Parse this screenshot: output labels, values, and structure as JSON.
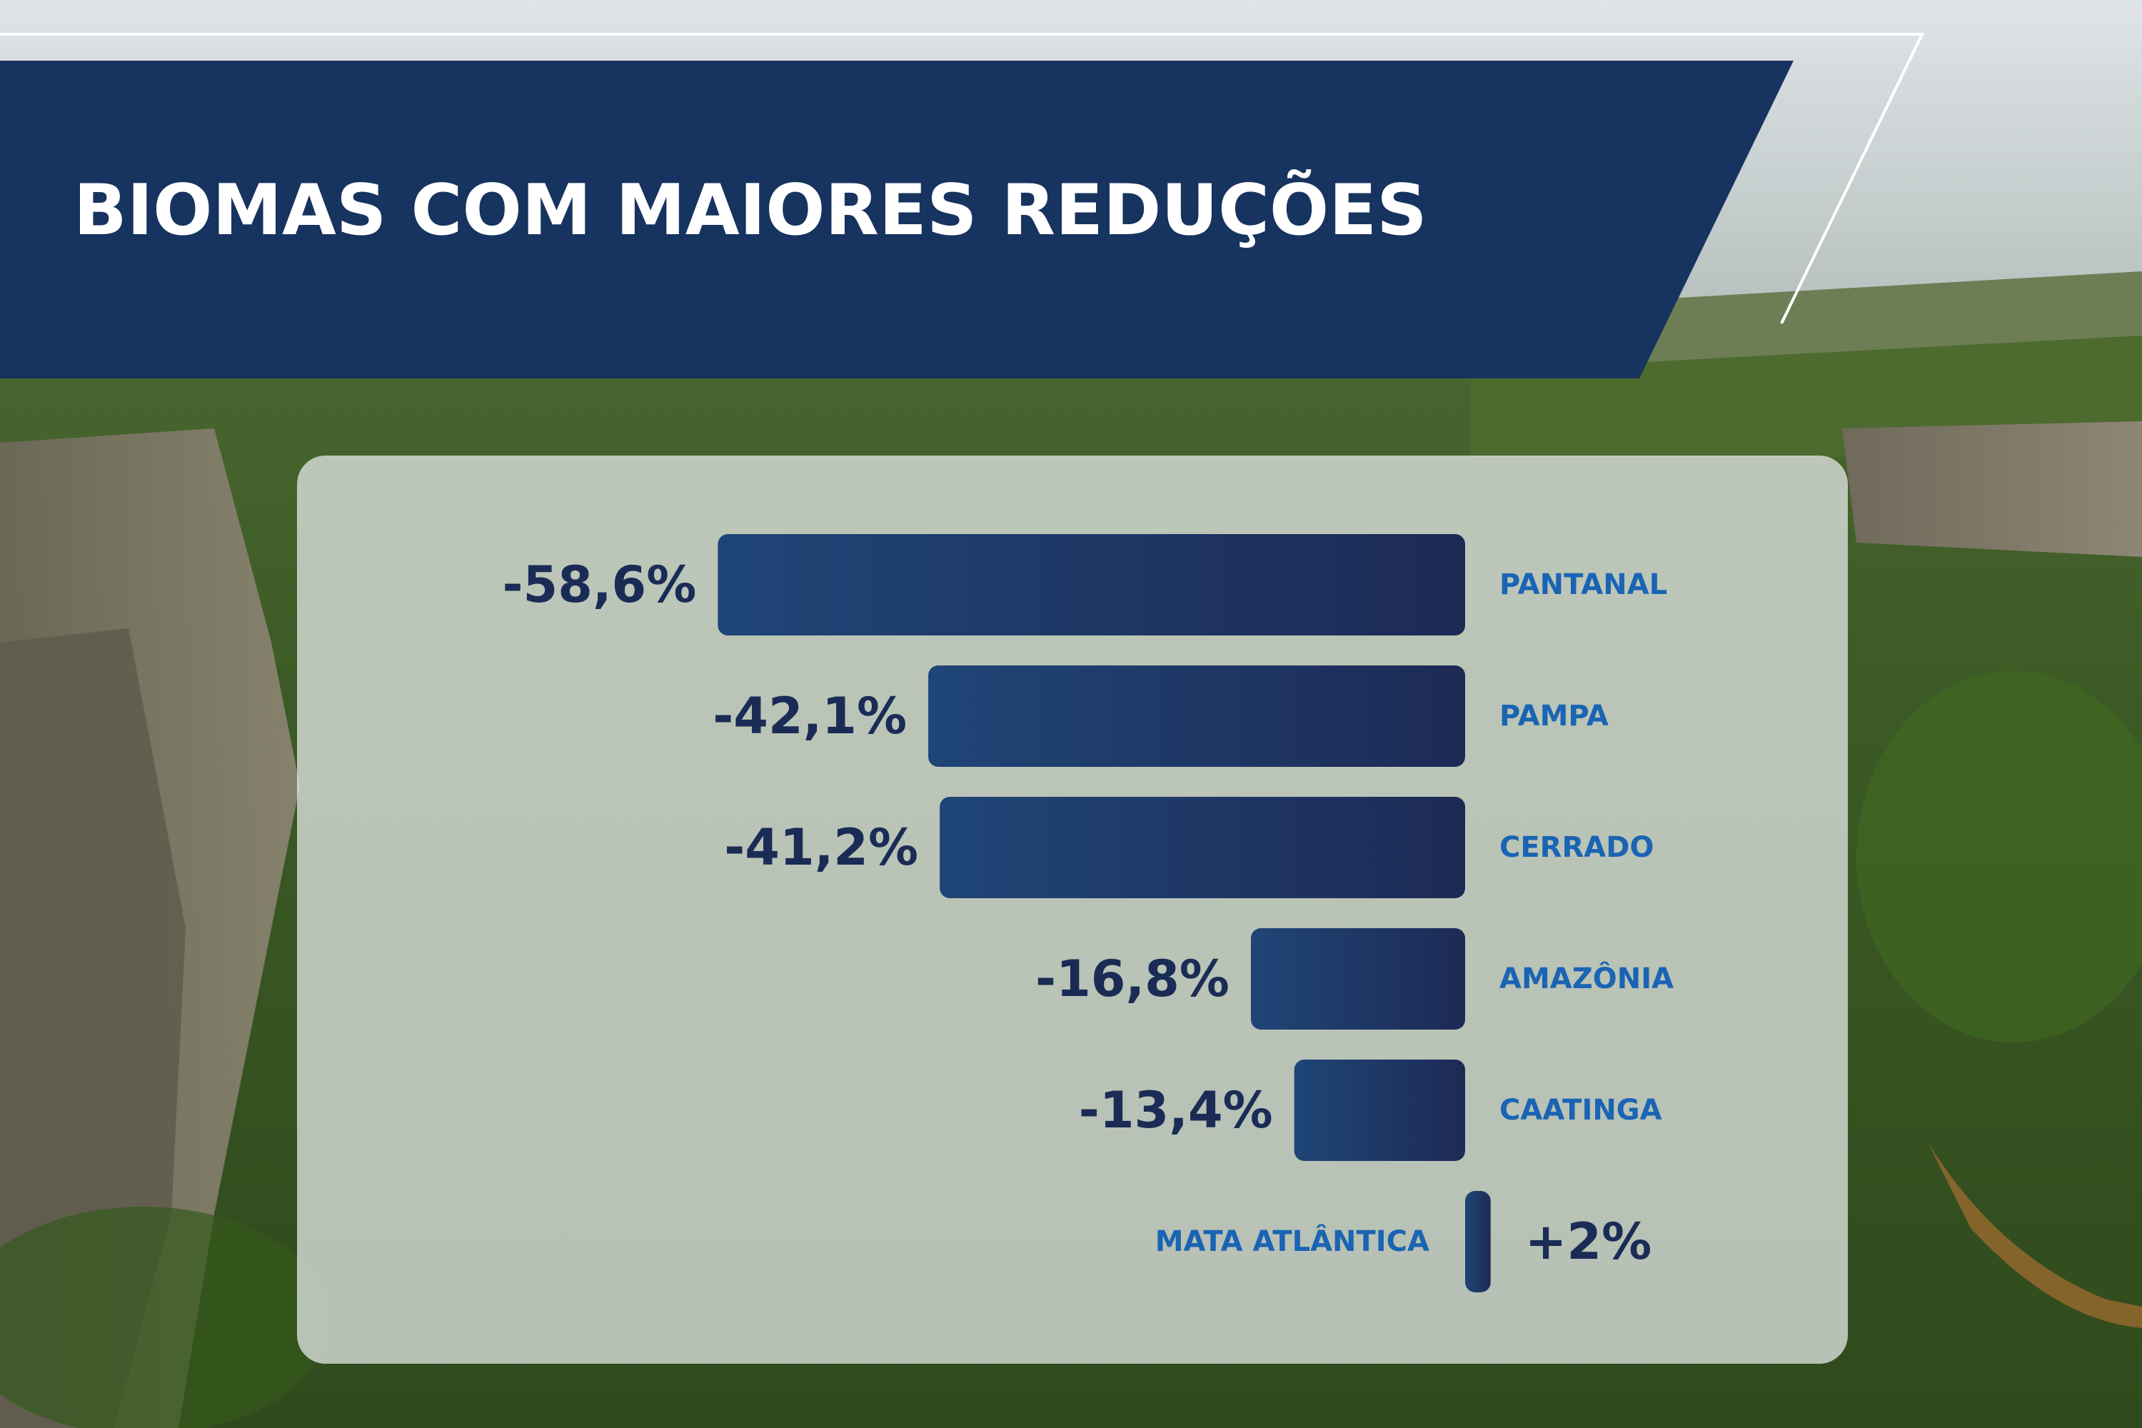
{
  "title": "BIOMAS COM MAIORES REDUÇÕES",
  "colors": {
    "banner": "#17335f",
    "bar_start": "#1f4577",
    "bar_end": "#1d2a55",
    "value_text": "#1a2c56",
    "label_text": "#1a64b4",
    "panel": "#eceef0"
  },
  "chart_data": {
    "type": "bar",
    "orientation": "horizontal",
    "title": "BIOMAS COM MAIORES REDUÇÕES",
    "categories": [
      "PANTANAL",
      "PAMPA",
      "CERRADO",
      "AMAZÔNIA",
      "CAATINGA",
      "MATA ATLÂNTICA"
    ],
    "values": [
      -58.6,
      -42.1,
      -41.2,
      -16.8,
      -13.4,
      2
    ],
    "value_labels": [
      "-58,6%",
      "-42,1%",
      "-41,2%",
      "-16,8%",
      "-13,4%",
      "+2%"
    ],
    "unit": "%"
  }
}
